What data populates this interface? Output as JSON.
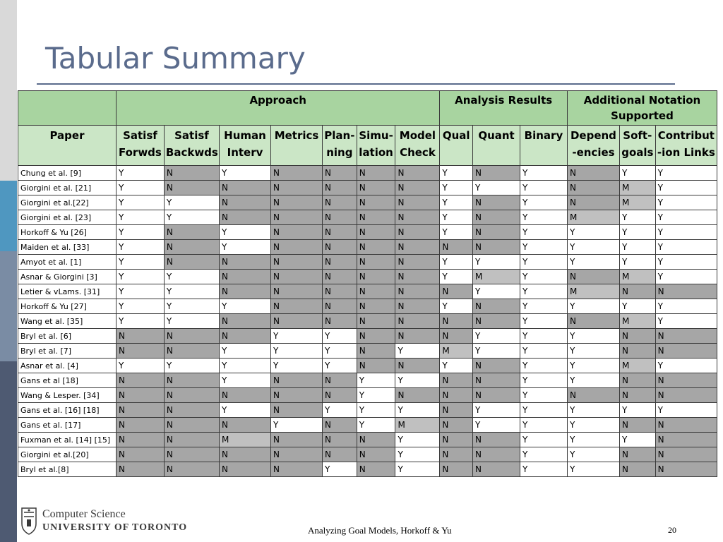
{
  "title": "Tabular Summary",
  "table": {
    "group_headers": [
      "",
      "Approach",
      "Analysis Results",
      "Additional Notation Supported"
    ],
    "columns": [
      [
        "Paper"
      ],
      [
        "Satisf",
        "Forwds"
      ],
      [
        "Satisf",
        "Backwds"
      ],
      [
        "Human",
        "Interv"
      ],
      [
        "Metrics"
      ],
      [
        "Plan-",
        "ning"
      ],
      [
        "Simu-",
        "lation"
      ],
      [
        "Model",
        "Check"
      ],
      [
        "Qual"
      ],
      [
        "Quant"
      ],
      [
        "Binary"
      ],
      [
        "Depend",
        "-encies"
      ],
      [
        "Soft-",
        "goals"
      ],
      [
        "Contribut",
        "-ion Links"
      ]
    ],
    "rows": [
      [
        "Chung et al. [9]",
        "Y",
        "N",
        "Y",
        "N",
        "N",
        "N",
        "N",
        "Y",
        "N",
        "Y",
        "N",
        "Y",
        "Y"
      ],
      [
        "Giorgini et al. [21]",
        "Y",
        "N",
        "N",
        "N",
        "N",
        "N",
        "N",
        "Y",
        "Y",
        "Y",
        "N",
        "M",
        "Y"
      ],
      [
        "Giorgini et al.[22]",
        "Y",
        "Y",
        "N",
        "N",
        "N",
        "N",
        "N",
        "Y",
        "N",
        "Y",
        "N",
        "M",
        "Y"
      ],
      [
        "Giorgini et al. [23]",
        "Y",
        "Y",
        "N",
        "N",
        "N",
        "N",
        "N",
        "Y",
        "N",
        "Y",
        "M",
        "Y",
        "Y"
      ],
      [
        "Horkoff & Yu [26]",
        "Y",
        "N",
        "Y",
        "N",
        "N",
        "N",
        "N",
        "Y",
        "N",
        "Y",
        "Y",
        "Y",
        "Y"
      ],
      [
        "Maiden et al. [33]",
        "Y",
        "N",
        "Y",
        "N",
        "N",
        "N",
        "N",
        "N",
        "N",
        "Y",
        "Y",
        "Y",
        "Y"
      ],
      [
        "Amyot et al. [1]",
        "Y",
        "N",
        "N",
        "N",
        "N",
        "N",
        "N",
        "Y",
        "Y",
        "Y",
        "Y",
        "Y",
        "Y"
      ],
      [
        "Asnar & Giorgini [3]",
        "Y",
        "Y",
        "N",
        "N",
        "N",
        "N",
        "N",
        "Y",
        "M",
        "Y",
        "N",
        "M",
        "Y"
      ],
      [
        "Letier & vLams. [31]",
        "Y",
        "Y",
        "N",
        "N",
        "N",
        "N",
        "N",
        "N",
        "Y",
        "Y",
        "M",
        "N",
        "N"
      ],
      [
        "Horkoff & Yu [27]",
        "Y",
        "Y",
        "Y",
        "N",
        "N",
        "N",
        "N",
        "Y",
        "N",
        "Y",
        "Y",
        "Y",
        "Y"
      ],
      [
        "Wang et al. [35]",
        "Y",
        "Y",
        "N",
        "N",
        "N",
        "N",
        "N",
        "N",
        "N",
        "Y",
        "N",
        "M",
        "Y"
      ],
      [
        "Bryl et al. [6]",
        "N",
        "N",
        "N",
        "Y",
        "Y",
        "N",
        "N",
        "N",
        "Y",
        "Y",
        "Y",
        "N",
        "N"
      ],
      [
        "Bryl et al. [7]",
        "N",
        "N",
        "Y",
        "Y",
        "Y",
        "N",
        "Y",
        "M",
        "Y",
        "Y",
        "Y",
        "N",
        "N"
      ],
      [
        "Asnar et al. [4]",
        "Y",
        "Y",
        "Y",
        "Y",
        "Y",
        "N",
        "N",
        "Y",
        "N",
        "Y",
        "Y",
        "M",
        "Y"
      ],
      [
        "Gans et al [18]",
        "N",
        "N",
        "Y",
        "N",
        "N",
        "Y",
        "Y",
        "N",
        "N",
        "Y",
        "Y",
        "N",
        "N"
      ],
      [
        "Wang & Lesper. [34]",
        "N",
        "N",
        "N",
        "N",
        "N",
        "Y",
        "N",
        "N",
        "N",
        "Y",
        "N",
        "N",
        "N"
      ],
      [
        "Gans et al. [16] [18]",
        "N",
        "N",
        "Y",
        "N",
        "Y",
        "Y",
        "Y",
        "N",
        "Y",
        "Y",
        "Y",
        "Y",
        "Y"
      ],
      [
        "Gans et al. [17]",
        "N",
        "N",
        "N",
        "Y",
        "N",
        "Y",
        "M",
        "N",
        "Y",
        "Y",
        "Y",
        "N",
        "N"
      ],
      [
        "Fuxman et al. [14] [15]",
        "N",
        "N",
        "M",
        "N",
        "N",
        "N",
        "Y",
        "N",
        "N",
        "Y",
        "Y",
        "Y",
        "N"
      ],
      [
        "Giorgini et al.[20]",
        "N",
        "N",
        "N",
        "N",
        "N",
        "N",
        "Y",
        "N",
        "N",
        "Y",
        "Y",
        "N",
        "N"
      ],
      [
        "Bryl et al.[8]",
        "N",
        "N",
        "N",
        "N",
        "Y",
        "N",
        "Y",
        "N",
        "N",
        "Y",
        "Y",
        "N",
        "N"
      ]
    ]
  },
  "footer": {
    "logo_line1": "Computer Science",
    "logo_line2": "UNIVERSITY OF TORONTO",
    "center_text": "Analyzing Goal Models,  Horkoff & Yu",
    "page_number": "20"
  },
  "colors": {
    "title": "#5a6b8c",
    "header_dark_green": "#a8d4a0",
    "header_light_green": "#cbe6c6",
    "cell_yes": "#ffffff",
    "cell_no": "#a6a6a6",
    "cell_maybe": "#c0c0c0",
    "sidebar_gray": "#d9d9d9",
    "sidebar_blue": "#4f97c0",
    "sidebar_slate": "#7a8ca4",
    "sidebar_navy": "#4e5a72"
  }
}
